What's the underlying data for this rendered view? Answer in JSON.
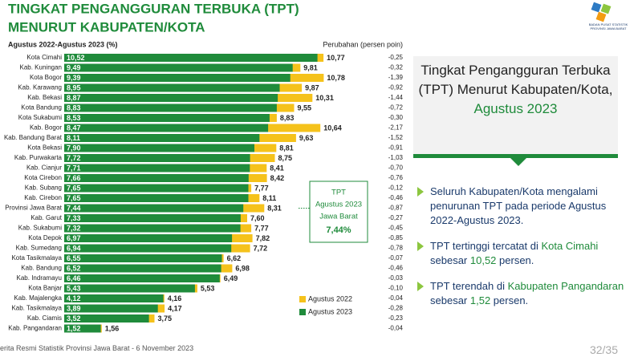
{
  "chart_data": {
    "type": "bar",
    "title_lines": [
      "TINGKAT PENGANGGURAN TERBUKA (TPT)",
      "MENURUT KABUPATEN/KOTA"
    ],
    "subtitle": "Agustus 2022-Agustus 2023 (%)",
    "categories": [
      "Kota Cimahi",
      "Kab. Kuningan",
      "Kota Bogor",
      "Kab. Karawang",
      "Kab. Bekasi",
      "Kota Bandung",
      "Kota Sukabumi",
      "Kab. Bogor",
      "Kab. Bandung Barat",
      "Kota Bekasi",
      "Kab. Purwakarta",
      "Kab. Cianjur",
      "Kota Cirebon",
      "Kab. Subang",
      "Kab. Cirebon",
      "Provinsi Jawa Barat",
      "Kab. Garut",
      "Kab. Sukabumi",
      "Kota Depok",
      "Kab. Sumedang",
      "Kota Tasikmalaya",
      "Kab. Bandung",
      "Kab. Indramayu",
      "Kota Banjar",
      "Kab. Majalengka",
      "Kab. Tasikmalaya",
      "Kab. Ciamis",
      "Kab. Pangandaran"
    ],
    "series": [
      {
        "name": "Agustus 2022",
        "color": "#f5c21b",
        "values": [
          10.77,
          9.81,
          10.78,
          9.87,
          10.31,
          9.55,
          8.83,
          10.64,
          9.63,
          8.81,
          8.75,
          8.41,
          8.42,
          7.77,
          8.11,
          8.31,
          7.6,
          7.77,
          7.82,
          7.72,
          6.62,
          6.98,
          6.49,
          5.53,
          4.16,
          4.17,
          3.75,
          1.56
        ],
        "value_labels": [
          "10,77",
          "9,81",
          "10,78",
          "9,87",
          "10,31",
          "9,55",
          "8,83",
          "10,64",
          "9,63",
          "8,81",
          "8,75",
          "8,41",
          "8,42",
          "7,77",
          "8,11",
          "8,31",
          "7,60",
          "7,77",
          "7,82",
          "7,72",
          "6,62",
          "6,98",
          "6,49",
          "5,53",
          "4,16",
          "4,17",
          "3,75",
          "1,56"
        ]
      },
      {
        "name": "Agustus 2023",
        "color": "#1f8b3b",
        "values": [
          10.52,
          9.49,
          9.39,
          8.95,
          8.87,
          8.83,
          8.53,
          8.47,
          8.11,
          7.9,
          7.72,
          7.71,
          7.66,
          7.65,
          7.65,
          7.44,
          7.33,
          7.32,
          6.97,
          6.94,
          6.55,
          6.52,
          6.46,
          5.43,
          4.12,
          3.89,
          3.52,
          1.52
        ],
        "value_labels": [
          "10,52",
          "9,49",
          "9,39",
          "8,95",
          "8,87",
          "8,83",
          "8,53",
          "8,47",
          "8,11",
          "7,90",
          "7,72",
          "7,71",
          "7,66",
          "7,65",
          "7,65",
          "7,44",
          "7,33",
          "7,32",
          "6,97",
          "6,94",
          "6,55",
          "6,52",
          "6,46",
          "5,43",
          "4,12",
          "3,89",
          "3,52",
          "1,52"
        ]
      }
    ],
    "change_title": "Perubahan (persen poin)",
    "change_labels": [
      "-0,25",
      "-0,32",
      "-1,39",
      "-0,92",
      "-1,44",
      "-0,72",
      "-0,30",
      "-2,17",
      "-1,52",
      "-0,91",
      "-1,03",
      "-0,70",
      "-0,76",
      "-0,12",
      "-0,46",
      "-0,87",
      "-0,27",
      "-0,45",
      "-0,85",
      "-0,78",
      "-0,07",
      "-0,46",
      "-0,03",
      "-0,10",
      "-0,04",
      "-0,28",
      "-0,23",
      "-0,04"
    ],
    "annotation": [
      "TPT",
      "Agustus 2023",
      "Jawa Barat",
      "7,44%"
    ]
  },
  "logo": "BADAN PUSAT STATISTIK PROVINSI JAWA BARAT",
  "panel": {
    "title": "Tingkat Pengangguran Terbuka (TPT) Menurut Kabupaten/Kota,",
    "highlight": "Agustus 2023"
  },
  "bullets": [
    [
      "Seluruh Kabupaten/Kota mengalami penurunan TPT pada periode Agustus 2022-Agustus 2023."
    ],
    [
      "TPT tertinggi tercatat di ",
      "Kota Cimahi",
      " sebesar ",
      "10,52",
      " persen."
    ],
    [
      "TPT terendah di ",
      "Kabupaten Pangandaran",
      " sebesar ",
      "1,52",
      " persen."
    ]
  ],
  "footer": "erita Resmi Statistik Provinsi Jawa Barat - 6 November 2023",
  "page_number": "32/35"
}
